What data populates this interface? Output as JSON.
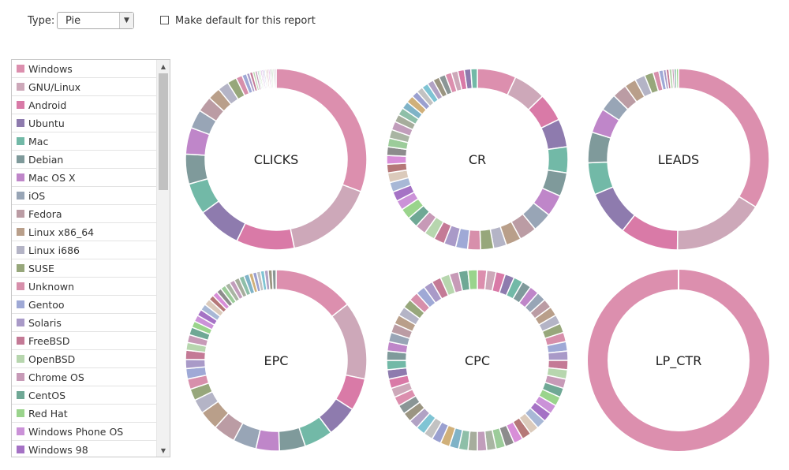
{
  "toolbar": {
    "type_label": "Type:",
    "type_value": "Pie",
    "default_label": "Make default for this report",
    "default_checked": false
  },
  "legend": {
    "items": [
      {
        "label": "Windows",
        "color": "#dc8fae"
      },
      {
        "label": "GNU/Linux",
        "color": "#cda8b9"
      },
      {
        "label": "Android",
        "color": "#d97aa7"
      },
      {
        "label": "Ubuntu",
        "color": "#8e7bae"
      },
      {
        "label": "Mac",
        "color": "#72b9a7"
      },
      {
        "label": "Debian",
        "color": "#7f9a9b"
      },
      {
        "label": "Mac OS X",
        "color": "#bf86c9"
      },
      {
        "label": "iOS",
        "color": "#98a5b6"
      },
      {
        "label": "Fedora",
        "color": "#bb9ca4"
      },
      {
        "label": "Linux x86_64",
        "color": "#b99f8a"
      },
      {
        "label": "Linux i686",
        "color": "#b4b4c6"
      },
      {
        "label": "SUSE",
        "color": "#97a77b"
      },
      {
        "label": "Unknown",
        "color": "#d78fab"
      },
      {
        "label": "Gentoo",
        "color": "#9fa9d6"
      },
      {
        "label": "Solaris",
        "color": "#a99ac8"
      },
      {
        "label": "FreeBSD",
        "color": "#c47a96"
      },
      {
        "label": "OpenBSD",
        "color": "#b7d6ae"
      },
      {
        "label": "Chrome OS",
        "color": "#c79ab7"
      },
      {
        "label": "CentOS",
        "color": "#6fa895"
      },
      {
        "label": "Red Hat",
        "color": "#9ad48c"
      },
      {
        "label": "Windows Phone OS",
        "color": "#cb92d8"
      },
      {
        "label": "Windows 98",
        "color": "#a572c5"
      }
    ]
  },
  "extra_colors": [
    "#a8b8d6",
    "#dbcabb",
    "#b57878",
    "#d88ed8",
    "#8c8c8c",
    "#9ccc9a",
    "#a9b5a3",
    "#c19dbb",
    "#a6ad9c",
    "#8ebfa8",
    "#7fb3c7",
    "#d0b07a",
    "#9aa0d0",
    "#c2c2c2",
    "#7fc4d4",
    "#b1a2c4",
    "#9b9581",
    "#8a9696"
  ],
  "chart_data": [
    {
      "type": "pie",
      "title": "CLICKS",
      "values": [
        110,
        57,
        37,
        28,
        20,
        19,
        17,
        12,
        10,
        8,
        7,
        6,
        4,
        3,
        2,
        2,
        1.5,
        1.5,
        1,
        1,
        1,
        1,
        1,
        1,
        1,
        1,
        1,
        1,
        1,
        1
      ]
    },
    {
      "type": "pie",
      "title": "CR",
      "values": [
        18,
        15,
        13,
        13,
        12,
        11,
        10,
        9,
        8,
        7,
        6,
        6,
        6,
        5.5,
        5.5,
        5,
        5,
        5,
        5,
        5,
        4.5,
        4.5,
        4.5,
        4.5,
        4,
        4,
        4,
        4,
        4,
        4,
        3.5,
        3.5,
        3.5,
        3.5,
        3,
        3,
        3,
        3,
        3,
        3,
        3,
        3,
        3,
        3,
        3
      ]
    },
    {
      "type": "pie",
      "title": "LEADS",
      "values": [
        130,
        63,
        40,
        31,
        22,
        21,
        17,
        12,
        10,
        8,
        7,
        6,
        4,
        3,
        2,
        2,
        2,
        1.5,
        1.5,
        1.5
      ]
    },
    {
      "type": "pie",
      "title": "EPC",
      "values": [
        62,
        60,
        25,
        24,
        22,
        20,
        18,
        18,
        17,
        15,
        11,
        9,
        8,
        8,
        7,
        7,
        6,
        6,
        6,
        5,
        5,
        5,
        5,
        5,
        4,
        4,
        4,
        4,
        4,
        4,
        4,
        4,
        4,
        3,
        3,
        3,
        3,
        3,
        3,
        3
      ]
    },
    {
      "type": "pie",
      "title": "CPC",
      "values": [
        1,
        1,
        1,
        1,
        1,
        1,
        1,
        1,
        1,
        1,
        1,
        1,
        1,
        1,
        1,
        1,
        1,
        1,
        1,
        1,
        1,
        1,
        1,
        1,
        1,
        1,
        1,
        1,
        1,
        1,
        1,
        1,
        1,
        1,
        1,
        1,
        1,
        1,
        1,
        1,
        1,
        1,
        1,
        1,
        1,
        1,
        1,
        1,
        1,
        1,
        1,
        1,
        1,
        1,
        1,
        1,
        1,
        1,
        1,
        1
      ]
    },
    {
      "type": "pie",
      "title": "LP_CTR",
      "values": [
        100
      ]
    }
  ]
}
